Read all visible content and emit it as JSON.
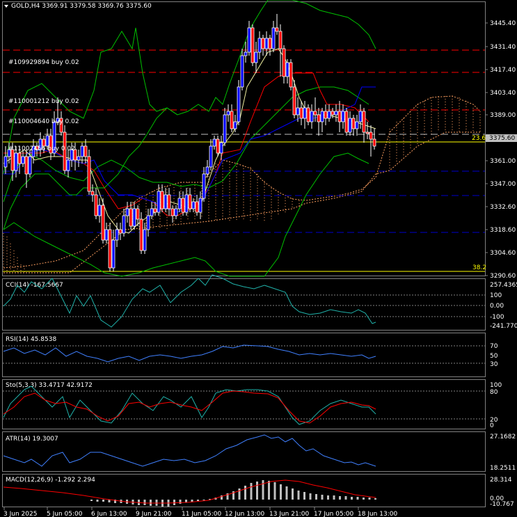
{
  "main": {
    "title": "GOLD,H4  3369.91 3379.58 3369.76 3375.60",
    "price_axis": [
      "3445.40",
      "3431.40",
      "3417.40",
      "3403.40",
      "3389.00",
      "3375.60",
      "3361.00",
      "3347.00",
      "3332.60",
      "3318.60",
      "3304.60",
      "3290.60"
    ],
    "current_price_label": "3375.60",
    "fib_label_top": "23.6",
    "fib_label_bottom": "38.2",
    "order_labels": [
      "#109929894 buy 0.02",
      "#110001212 buy 0.02",
      "#110004640 buy 0.02",
      "#1100​2456 buy 0.02"
    ]
  },
  "cci": {
    "title": "CCI(14) -167.5667",
    "scale": [
      "257.4365",
      "100",
      "0.00",
      "-100",
      "-241.7709"
    ]
  },
  "rsi": {
    "title": "RSI(14) 45.8538",
    "scale": [
      "70",
      "50",
      "30"
    ]
  },
  "sto": {
    "title": "Sto(5,3,3) 33.4717 42.9172",
    "scale": [
      "100",
      "80",
      "20",
      "0"
    ]
  },
  "atr": {
    "title": "ATR(14) 19.3007",
    "scale": [
      "27.1682",
      "18.2511"
    ]
  },
  "macd": {
    "title": "MACD(12,26,9) -1.292 2.294",
    "scale": [
      "28.314",
      "0.00",
      "-10.767"
    ]
  },
  "time_axis": [
    "3 Jun 2025",
    "5 Jun 05:00",
    "6 Jun 13:00",
    "9 Jun 21:00",
    "11 Jun 05:00",
    "12 Jun 13:00",
    "13 Jun 21:00",
    "17 Jun 05:00",
    "18 Jun 13:00"
  ],
  "colors": {
    "bull": "#0000ff",
    "bear": "#ff0000",
    "bb": "#00c000",
    "ichimoku_cloud": "#ffa060",
    "fib": "#ffff00",
    "order_line": "#ff0000",
    "sl_line": "#0000cc",
    "ma": "#f0f0a0"
  }
}
